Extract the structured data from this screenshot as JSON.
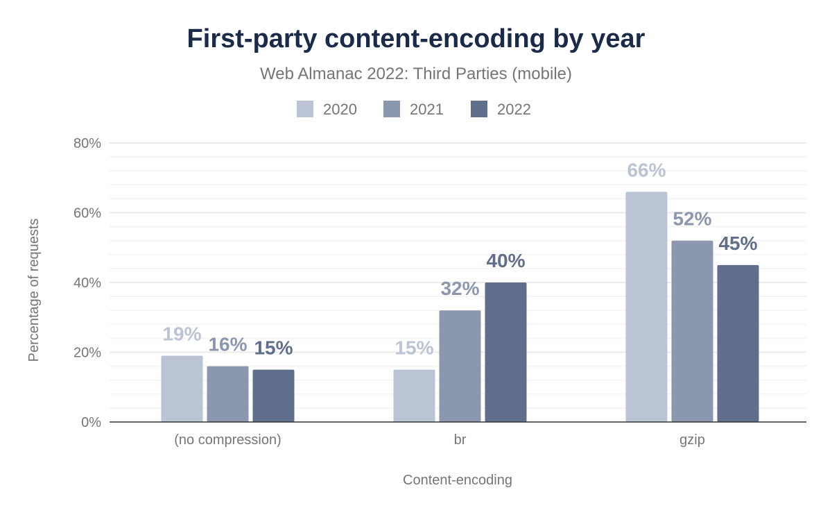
{
  "chart_data": {
    "type": "bar",
    "title": "First-party content-encoding by year",
    "subtitle": "Web Almanac 2022: Third Parties (mobile)",
    "xlabel": "Content-encoding",
    "ylabel": "Percentage of requests",
    "categories": [
      "(no compression)",
      "br",
      "gzip"
    ],
    "series": [
      {
        "name": "2020",
        "color": "#bac4d4",
        "values": [
          19,
          15,
          66
        ],
        "labels": [
          "19%",
          "15%",
          "66%"
        ]
      },
      {
        "name": "2021",
        "color": "#8b97ae",
        "values": [
          16,
          32,
          52
        ],
        "labels": [
          "16%",
          "32%",
          "52%"
        ]
      },
      {
        "name": "2022",
        "color": "#5f6f8b",
        "values": [
          15,
          40,
          45
        ],
        "labels": [
          "15%",
          "40%",
          "45%"
        ]
      }
    ],
    "ylim": [
      0,
      80
    ],
    "yticks": [
      0,
      20,
      40,
      60,
      80
    ],
    "ytick_labels": [
      "0%",
      "20%",
      "40%",
      "60%",
      "80%"
    ],
    "grid": true,
    "legend": "top-center",
    "title_color": "#1a2b49"
  }
}
